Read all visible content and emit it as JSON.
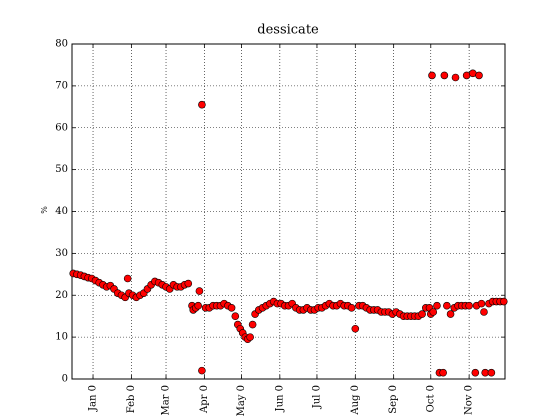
{
  "chart_data": {
    "type": "scatter",
    "title": "dessicate",
    "y_label": "%",
    "color": "#ff0000",
    "edge_color": "#000000",
    "title_color": "#0000ff",
    "grid": true,
    "xlim": [
      -17,
      333
    ],
    "ylim": [
      0,
      80
    ],
    "yticks": [
      0,
      10,
      20,
      30,
      40,
      50,
      60,
      70,
      80
    ],
    "xticks": [
      {
        "value": 0,
        "label": "Jan 0"
      },
      {
        "value": 31,
        "label": "Feb 0"
      },
      {
        "value": 59,
        "label": "Mar 0"
      },
      {
        "value": 90,
        "label": "Apr 0"
      },
      {
        "value": 120,
        "label": "May 0"
      },
      {
        "value": 151,
        "label": "Jun 0"
      },
      {
        "value": 181,
        "label": "Jul 0"
      },
      {
        "value": 212,
        "label": "Aug 0"
      },
      {
        "value": 243,
        "label": "Sep 0"
      },
      {
        "value": 273,
        "label": "Oct 0"
      },
      {
        "value": 304,
        "label": "Nov 0"
      }
    ],
    "x": [
      -16,
      -13,
      -10,
      -7,
      -4,
      -1,
      2,
      5,
      8,
      11,
      14,
      17,
      20,
      23,
      26,
      28,
      29,
      32,
      35,
      38,
      41,
      44,
      47,
      50,
      53,
      56,
      59,
      62,
      65,
      68,
      71,
      74,
      77,
      80,
      81,
      83,
      85,
      86,
      88,
      88,
      91,
      94,
      97,
      100,
      103,
      106,
      109,
      112,
      115,
      117,
      119,
      121,
      123,
      125,
      127,
      129,
      131,
      134,
      137,
      140,
      143,
      146,
      149,
      152,
      155,
      158,
      161,
      164,
      167,
      170,
      173,
      176,
      179,
      182,
      185,
      188,
      191,
      194,
      197,
      200,
      203,
      206,
      209,
      212,
      215,
      218,
      221,
      224,
      227,
      230,
      233,
      236,
      239,
      242,
      245,
      248,
      251,
      254,
      257,
      260,
      263,
      266,
      269,
      272,
      273,
      274,
      275,
      278,
      280,
      283,
      284,
      286,
      289,
      292,
      293,
      295,
      298,
      301,
      302,
      304,
      307,
      309,
      310,
      312,
      314,
      316,
      317,
      320,
      322,
      323,
      326,
      329,
      332
    ],
    "values": [
      25.2,
      25,
      24.8,
      24.5,
      24.2,
      24,
      23.5,
      23,
      22.5,
      22,
      22.3,
      21.5,
      20.5,
      20,
      19.5,
      24,
      20.5,
      20,
      19.5,
      20,
      20.5,
      21.5,
      22.5,
      23.3,
      23,
      22.5,
      22,
      21.5,
      22.5,
      22,
      22,
      22.5,
      22.8,
      17.5,
      16.5,
      17,
      17.5,
      21,
      65.5,
      2,
      17,
      17,
      17.5,
      17.5,
      17.5,
      18,
      17.5,
      17,
      15,
      13,
      12,
      11,
      10,
      9.5,
      10,
      13,
      15.5,
      16.5,
      17,
      17.5,
      18,
      18.5,
      18,
      18,
      17.5,
      17.5,
      18,
      17,
      16.5,
      16.5,
      17,
      16.5,
      16.5,
      17,
      17,
      17.5,
      18,
      17.5,
      17.5,
      18,
      17.5,
      17.5,
      17,
      12,
      17.5,
      17.5,
      17,
      16.5,
      16.5,
      16.5,
      16,
      16,
      16,
      15.5,
      16,
      15.5,
      15,
      15,
      15,
      15,
      15,
      15.5,
      17,
      17,
      15.5,
      72.5,
      16,
      17.5,
      1.5,
      1.5,
      72.5,
      17.5,
      15.5,
      17,
      72,
      17.5,
      17.5,
      17.5,
      72.5,
      17.5,
      73,
      1.5,
      17.5,
      72.5,
      18,
      16,
      1.5,
      18,
      1.5,
      18.5,
      18.5,
      18.5,
      18.5
    ]
  }
}
